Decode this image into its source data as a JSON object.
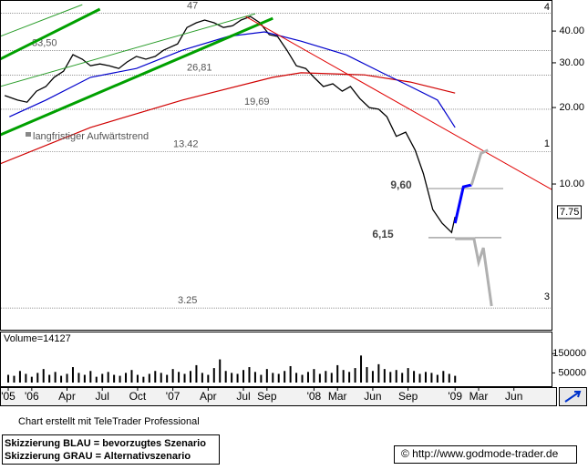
{
  "chart_data": [
    {
      "type": "line",
      "xlim": [
        -2.7,
        44.2
      ],
      "xticks": [
        {
          "value": -2,
          "label": "'05"
        },
        {
          "value": 0,
          "label": "'06"
        },
        {
          "value": 3,
          "label": "Apr"
        },
        {
          "value": 6,
          "label": "Jul"
        },
        {
          "value": 9,
          "label": "Oct"
        },
        {
          "value": 12,
          "label": "'07"
        },
        {
          "value": 15,
          "label": "Apr"
        },
        {
          "value": 18,
          "label": "Jul"
        },
        {
          "value": 20,
          "label": "Sep"
        },
        {
          "value": 24,
          "label": "'08"
        },
        {
          "value": 26,
          "label": "Mar"
        },
        {
          "value": 29,
          "label": "Jun"
        },
        {
          "value": 32,
          "label": "Sep"
        },
        {
          "value": 36,
          "label": "'09"
        },
        {
          "value": 38,
          "label": "Mar"
        },
        {
          "value": 41,
          "label": "Jun"
        }
      ],
      "ylim": [
        2.67,
        53
      ],
      "log_scale": true,
      "yticks": [
        {
          "value": 40,
          "label": "40.00"
        },
        {
          "value": 30,
          "label": "30.00"
        },
        {
          "value": 20,
          "label": "20.00"
        },
        {
          "value": 10,
          "label": "10.00"
        }
      ],
      "series": [
        {
          "color": "#000000",
          "width": 1.3,
          "x": [
            -2.3,
            -1.2,
            -0.4,
            0.4,
            1.2,
            1.9,
            2.7,
            3.5,
            4.3,
            5.0,
            5.8,
            6.6,
            7.4,
            8.1,
            8.9,
            9.7,
            10.5,
            11.2,
            12.4,
            13.2,
            14.0,
            14.7,
            15.5,
            16.3,
            17.1,
            17.8,
            18.6,
            19.4,
            20.2,
            20.9,
            21.7,
            22.5,
            23.3,
            24.0,
            24.8,
            25.6,
            26.4,
            27.1,
            27.9,
            28.7,
            29.5,
            30.2,
            31.0,
            31.8,
            32.6,
            33.3,
            34.1,
            34.9,
            35.7,
            36.0
          ],
          "values": [
            22.3,
            21.4,
            21.0,
            23.2,
            24.2,
            26.3,
            27.8,
            32.3,
            31.0,
            29.2,
            29.7,
            29.2,
            28.5,
            30.2,
            31.8,
            31.0,
            31.8,
            33.6,
            35.6,
            41.3,
            43.1,
            44.2,
            43.1,
            41.3,
            42.0,
            44.2,
            45.6,
            43.1,
            38.7,
            38.1,
            33.6,
            29.2,
            28.5,
            26.3,
            24.2,
            24.8,
            23.2,
            24.2,
            21.7,
            20.0,
            19.7,
            18.4,
            15.4,
            16.0,
            13.6,
            11.0,
            7.94,
            7.01,
            6.45,
            7.43
          ]
        },
        {
          "color": "#d00000",
          "width": 1.2,
          "x": [
            -2.7,
            5.0,
            12.8,
            20.5,
            22.9,
            28.3,
            32.2,
            36.0
          ],
          "values": [
            12.0,
            16.7,
            21.4,
            26.3,
            27.4,
            26.9,
            25.2,
            22.8
          ]
        },
        {
          "color": "#0000cc",
          "width": 1.2,
          "x": [
            -1.9,
            1.2,
            5.0,
            8.9,
            12.8,
            16.7,
            19.8,
            22.9,
            26.7,
            29.8,
            32.2,
            34.5,
            36.0
          ],
          "values": [
            18.4,
            21.4,
            26.3,
            28.5,
            33.6,
            38.1,
            39.7,
            36.5,
            32.3,
            27.4,
            24.2,
            21.4,
            16.7
          ]
        },
        {
          "color": "#00a000",
          "width": 3,
          "x": [
            -2.7,
            20.5
          ],
          "values": [
            15.6,
            44.9
          ]
        },
        {
          "color": "#00a000",
          "width": 3,
          "x": [
            -2.7,
            5.8
          ],
          "values": [
            31.0,
            48.8
          ]
        },
        {
          "color": "#2a9d2a",
          "width": 1,
          "x": [
            -2.7,
            19.0
          ],
          "values": [
            24.2,
            46.8
          ]
        },
        {
          "color": "#2a9d2a",
          "width": 1,
          "x": [
            -2.7,
            4.3
          ],
          "values": [
            38.1,
            50.8
          ]
        },
        {
          "color": "#e00000",
          "width": 1,
          "x": [
            18.2,
            44.2
          ],
          "values": [
            45.6,
            9.52
          ]
        },
        {
          "color": "#0000ff",
          "width": 3,
          "x": [
            36.0,
            36.7,
            37.4
          ],
          "values": [
            7.01,
            9.75,
            9.92
          ]
        },
        {
          "color": "#b0b0b0",
          "width": 3,
          "x": [
            37.4,
            38.2,
            38.8
          ],
          "values": [
            9.92,
            13.2,
            13.6
          ]
        },
        {
          "color": "#b0b0b0",
          "width": 3,
          "x": [
            36.0,
            37.6,
            38.0,
            38.4,
            39.1
          ],
          "values": [
            6.09,
            6.09,
            4.92,
            5.61,
            3.31
          ]
        }
      ],
      "levels": [
        47,
        {
          "value": 33.5,
          "label": "33,50"
        },
        {
          "value": 26.81,
          "label": "26,81"
        },
        {
          "value": 19.69,
          "label": "19,69"
        },
        13.42,
        3.25
      ],
      "short_levels": [
        {
          "value": 9.6,
          "label": "9,60"
        },
        {
          "value": 6.15,
          "label": "6,15"
        }
      ],
      "annotation": "langfristiger Aufwärtstrend",
      "edge_labels": [
        "4",
        "1",
        "3"
      ],
      "last_price": 7.75
    },
    {
      "type": "bar",
      "label": "Volume=14127",
      "color": "#000000",
      "ylim": [
        0,
        250000
      ],
      "yticks": [
        150000,
        50000
      ],
      "x": [
        -2,
        -1.5,
        -1,
        -0.5,
        0,
        0.5,
        1,
        1.5,
        2,
        2.5,
        3,
        3.5,
        4,
        4.5,
        5,
        5.5,
        6,
        6.5,
        7,
        7.5,
        8,
        8.5,
        9,
        9.5,
        10,
        10.5,
        11,
        11.5,
        12,
        12.5,
        13,
        13.5,
        14,
        14.5,
        15,
        15.5,
        16,
        16.5,
        17,
        17.5,
        18,
        18.5,
        19,
        19.5,
        20,
        20.5,
        21,
        21.5,
        22,
        22.5,
        23,
        23.5,
        24,
        24.5,
        25,
        25.5,
        26,
        26.5,
        27,
        27.5,
        28,
        28.5,
        29,
        29.5,
        30,
        30.5,
        31,
        31.5,
        32,
        32.5,
        33,
        33.5,
        34,
        34.5,
        35,
        35.5,
        36
      ],
      "values": [
        40000,
        35000,
        60000,
        45000,
        30000,
        50000,
        70000,
        40000,
        55000,
        35000,
        45000,
        80000,
        50000,
        40000,
        60000,
        30000,
        45000,
        55000,
        40000,
        35000,
        50000,
        65000,
        40000,
        30000,
        45000,
        60000,
        50000,
        40000,
        70000,
        55000,
        45000,
        60000,
        90000,
        50000,
        40000,
        75000,
        120000,
        60000,
        50000,
        45000,
        65000,
        80000,
        55000,
        40000,
        70000,
        50000,
        45000,
        60000,
        85000,
        50000,
        40000,
        55000,
        70000,
        45000,
        60000,
        50000,
        90000,
        65000,
        55000,
        75000,
        140000,
        80000,
        60000,
        95000,
        70000,
        55000,
        65000,
        50000,
        75000,
        60000,
        45000,
        55000,
        50000,
        40000,
        60000,
        45000,
        35000
      ]
    }
  ],
  "footer": {
    "credit": "Chart erstellt mit TeleTrader Professional",
    "legend_lines": [
      "Skizzierung BLAU = bevorzugtes Szenario",
      "Skizzierung GRAU = Alternativszenario"
    ],
    "copyright": "© http://www.godmode-trader.de"
  }
}
